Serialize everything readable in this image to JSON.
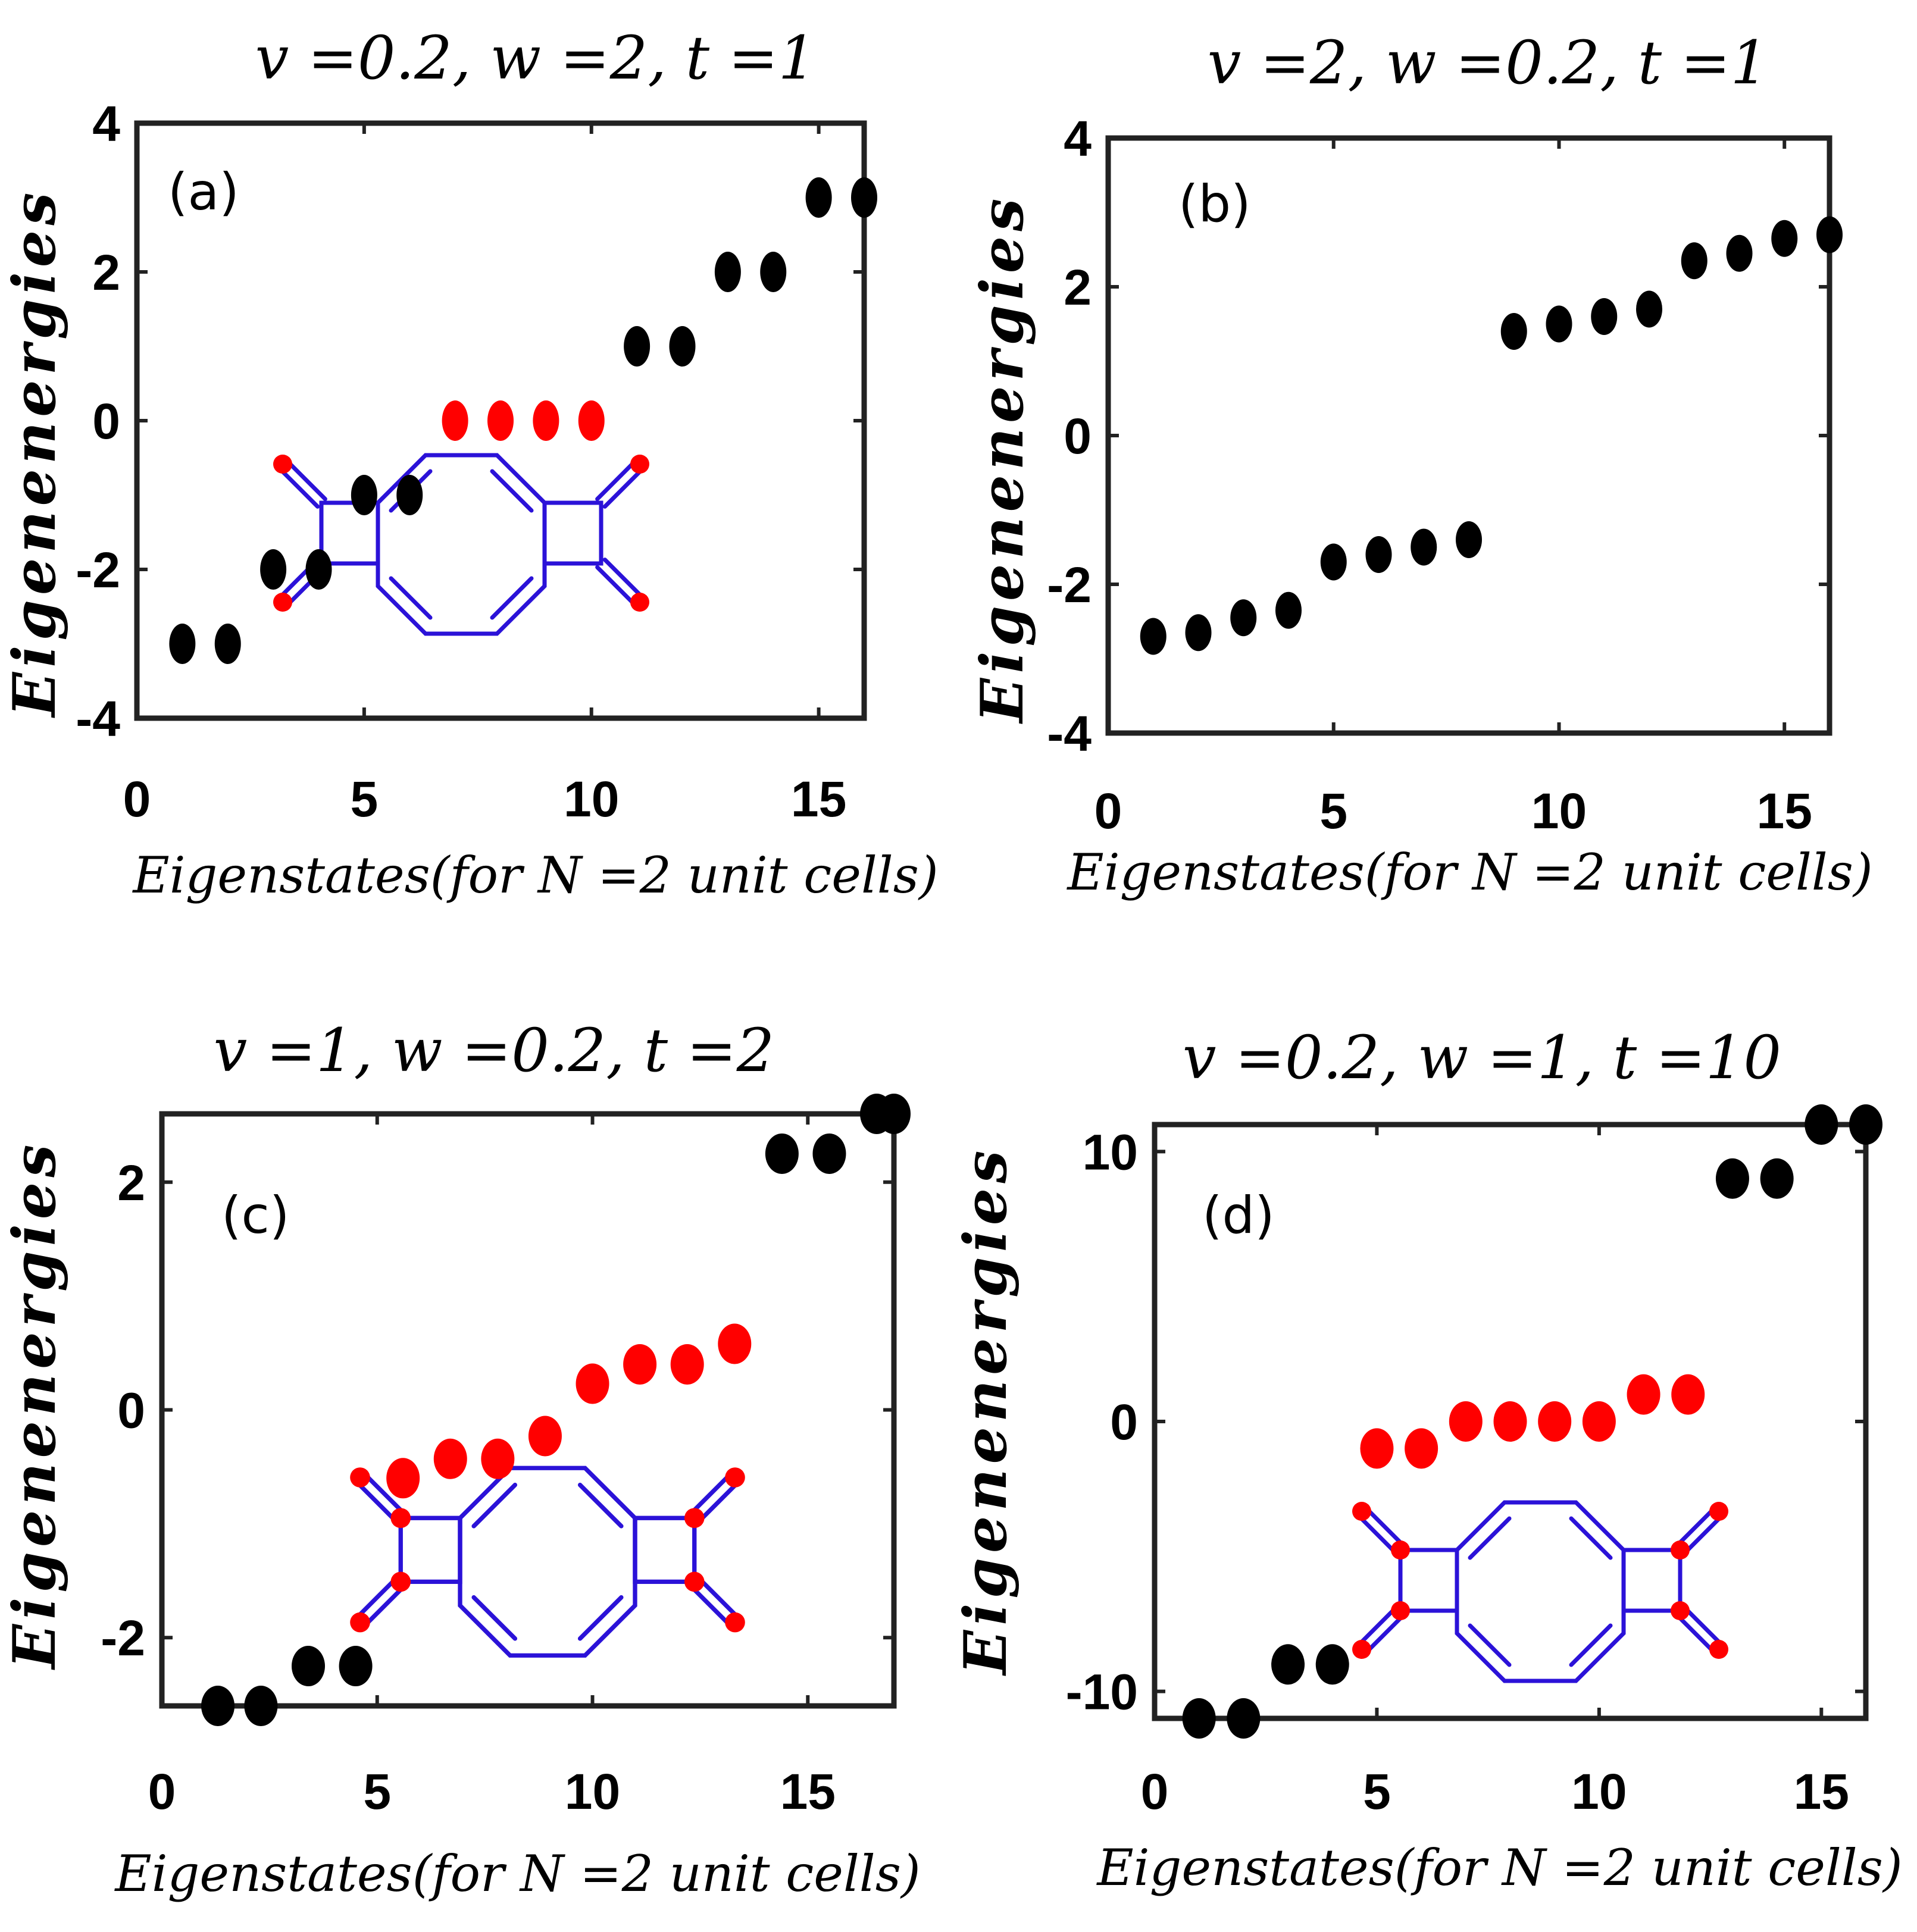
{
  "figure": {
    "colors": {
      "trivial": "#000000",
      "edge": "#ff0000",
      "molecule_bond": "#2b12d8",
      "molecule_site": "#ff0000",
      "axes": "#222222"
    }
  },
  "chart_data": [
    {
      "type": "scatter",
      "panel_label": "(a)",
      "title": "v =0.2, w =2, t =1",
      "xlabel": "Eigenstates(for N =2 unit cells)",
      "ylabel": "Eigenenergies",
      "xlim": [
        0,
        16
      ],
      "ylim": [
        -4,
        4
      ],
      "xticks": [
        0,
        5,
        10,
        15
      ],
      "yticks": [
        4,
        2,
        0,
        -2,
        -4
      ],
      "inset": "molecule-a",
      "points": [
        {
          "x": 1,
          "y": -3,
          "c": "k"
        },
        {
          "x": 2,
          "y": -3,
          "c": "k"
        },
        {
          "x": 3,
          "y": -2,
          "c": "k"
        },
        {
          "x": 4,
          "y": -2,
          "c": "k"
        },
        {
          "x": 5,
          "y": -1,
          "c": "k"
        },
        {
          "x": 6,
          "y": -1,
          "c": "k"
        },
        {
          "x": 7,
          "y": 0,
          "c": "r"
        },
        {
          "x": 8,
          "y": 0,
          "c": "r"
        },
        {
          "x": 9,
          "y": 0,
          "c": "r"
        },
        {
          "x": 10,
          "y": 0,
          "c": "r"
        },
        {
          "x": 11,
          "y": 1,
          "c": "k"
        },
        {
          "x": 12,
          "y": 1,
          "c": "k"
        },
        {
          "x": 13,
          "y": 2,
          "c": "k"
        },
        {
          "x": 14,
          "y": 2,
          "c": "k"
        },
        {
          "x": 15,
          "y": 3,
          "c": "k"
        },
        {
          "x": 16,
          "y": 3,
          "c": "k"
        }
      ]
    },
    {
      "type": "scatter",
      "panel_label": "(b)",
      "title": "v =2, w =0.2, t =1",
      "xlabel": "Eigenstates(for N =2 unit cells)",
      "ylabel": "Eigenenergies",
      "xlim": [
        0,
        16
      ],
      "ylim": [
        -4,
        4
      ],
      "xticks": [
        0,
        5,
        10,
        15
      ],
      "yticks": [
        4,
        2,
        0,
        -2,
        -4
      ],
      "inset": null,
      "points": [
        {
          "x": 1,
          "y": -2.7,
          "c": "k"
        },
        {
          "x": 2,
          "y": -2.65,
          "c": "k"
        },
        {
          "x": 3,
          "y": -2.45,
          "c": "k"
        },
        {
          "x": 4,
          "y": -2.35,
          "c": "k"
        },
        {
          "x": 5,
          "y": -1.7,
          "c": "k"
        },
        {
          "x": 6,
          "y": -1.6,
          "c": "k"
        },
        {
          "x": 7,
          "y": -1.5,
          "c": "k"
        },
        {
          "x": 8,
          "y": -1.4,
          "c": "k"
        },
        {
          "x": 9,
          "y": 1.4,
          "c": "k"
        },
        {
          "x": 10,
          "y": 1.5,
          "c": "k"
        },
        {
          "x": 11,
          "y": 1.6,
          "c": "k"
        },
        {
          "x": 12,
          "y": 1.7,
          "c": "k"
        },
        {
          "x": 13,
          "y": 2.35,
          "c": "k"
        },
        {
          "x": 14,
          "y": 2.45,
          "c": "k"
        },
        {
          "x": 15,
          "y": 2.65,
          "c": "k"
        },
        {
          "x": 16,
          "y": 2.7,
          "c": "k"
        }
      ]
    },
    {
      "type": "scatter",
      "panel_label": "(c)",
      "title": "v =1, w =0.2, t =2",
      "xlabel": "Eigenstates(for N =2 unit cells)",
      "ylabel": "Eigenenergies",
      "xlim": [
        0,
        17
      ],
      "ylim": [
        -2.6,
        2.6
      ],
      "xticks": [
        0,
        5,
        10,
        15
      ],
      "yticks": [
        2,
        0,
        -2
      ],
      "inset": "molecule-c",
      "points": [
        {
          "x": 1.3,
          "y": -2.6,
          "c": "k"
        },
        {
          "x": 2.3,
          "y": -2.6,
          "c": "k"
        },
        {
          "x": 3.4,
          "y": -2.25,
          "c": "k"
        },
        {
          "x": 4.5,
          "y": -2.25,
          "c": "k"
        },
        {
          "x": 5.6,
          "y": -0.6,
          "c": "r"
        },
        {
          "x": 6.7,
          "y": -0.43,
          "c": "r"
        },
        {
          "x": 7.8,
          "y": -0.43,
          "c": "r"
        },
        {
          "x": 8.9,
          "y": -0.23,
          "c": "r"
        },
        {
          "x": 10.0,
          "y": 0.23,
          "c": "r"
        },
        {
          "x": 11.1,
          "y": 0.4,
          "c": "r"
        },
        {
          "x": 12.2,
          "y": 0.4,
          "c": "r"
        },
        {
          "x": 13.3,
          "y": 0.58,
          "c": "r"
        },
        {
          "x": 14.4,
          "y": 2.25,
          "c": "k"
        },
        {
          "x": 15.5,
          "y": 2.25,
          "c": "k"
        },
        {
          "x": 16.6,
          "y": 2.6,
          "c": "k"
        },
        {
          "x": 17.0,
          "y": 2.6,
          "c": "k"
        }
      ]
    },
    {
      "type": "scatter",
      "panel_label": "(d)",
      "title": "v =0.2, w =1, t =10",
      "xlabel": "Eigenstates(for N =2 unit cells)",
      "ylabel": "Eigenenergies",
      "xlim": [
        0,
        16
      ],
      "ylim": [
        -11,
        11
      ],
      "xticks": [
        0,
        5,
        10,
        15
      ],
      "yticks": [
        10,
        0,
        -10
      ],
      "inset": "molecule-d",
      "points": [
        {
          "x": 1,
          "y": -11,
          "c": "k"
        },
        {
          "x": 2,
          "y": -11,
          "c": "k"
        },
        {
          "x": 3,
          "y": -9,
          "c": "k"
        },
        {
          "x": 4,
          "y": -9,
          "c": "k"
        },
        {
          "x": 5,
          "y": -1,
          "c": "r"
        },
        {
          "x": 6,
          "y": -1,
          "c": "r"
        },
        {
          "x": 7,
          "y": 0,
          "c": "r"
        },
        {
          "x": 8,
          "y": 0,
          "c": "r"
        },
        {
          "x": 9,
          "y": 0,
          "c": "r"
        },
        {
          "x": 10,
          "y": 0,
          "c": "r"
        },
        {
          "x": 11,
          "y": 1,
          "c": "r"
        },
        {
          "x": 12,
          "y": 1,
          "c": "r"
        },
        {
          "x": 13,
          "y": 9,
          "c": "k"
        },
        {
          "x": 14,
          "y": 9,
          "c": "k"
        },
        {
          "x": 15,
          "y": 11,
          "c": "k"
        },
        {
          "x": 16,
          "y": 11,
          "c": "k"
        }
      ]
    }
  ]
}
